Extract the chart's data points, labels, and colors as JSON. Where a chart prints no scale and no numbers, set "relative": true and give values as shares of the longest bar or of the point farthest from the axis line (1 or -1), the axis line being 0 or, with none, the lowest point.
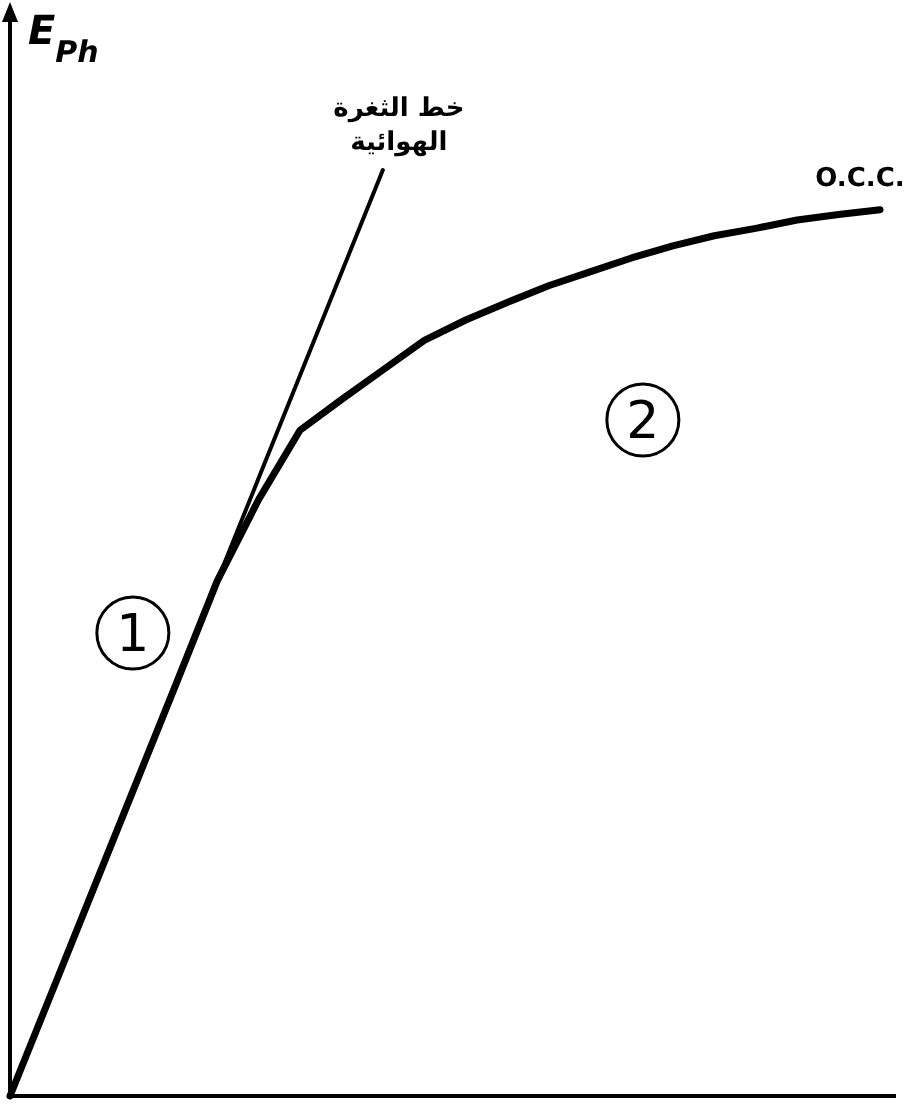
{
  "chart_data": {
    "type": "line",
    "relative": true,
    "ylabel": "E$_{Ph}$",
    "categories": [
      null,
      null,
      null,
      null,
      null,
      null,
      null,
      null,
      null,
      null,
      null,
      null,
      null,
      null,
      null,
      null,
      null,
      null,
      null,
      null,
      null,
      null
    ],
    "series": [
      {
        "name": "خط الثغرة الهوائية",
        "color": "#000000",
        "values": [
          0,
          0.111,
          0.222,
          0.333,
          0.444,
          0.556,
          0.667,
          0.778,
          0.889,
          1.0,
          null,
          null,
          null,
          null,
          null,
          null,
          null,
          null,
          null,
          null,
          null,
          null
        ]
      },
      {
        "name": "O.C.C.",
        "color": "#000000",
        "values": [
          0,
          0.111,
          0.222,
          0.333,
          0.444,
          0.556,
          0.644,
          0.719,
          0.752,
          0.784,
          0.816,
          0.838,
          0.857,
          0.875,
          0.89,
          0.905,
          0.918,
          0.929,
          0.937,
          0.946,
          0.952,
          0.957
        ]
      }
    ],
    "annotations": [
      "1",
      "2"
    ]
  }
}
